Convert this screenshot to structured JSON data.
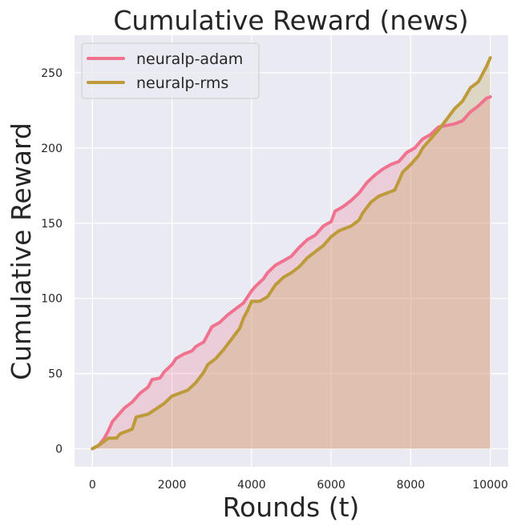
{
  "chart_data": {
    "type": "line",
    "title": "Cumulative Reward (news)",
    "xlabel": "Rounds (t)",
    "ylabel": "Cumulative Reward",
    "xlim": [
      -450,
      10450
    ],
    "ylim": [
      -12,
      275
    ],
    "xticks": [
      0,
      2000,
      4000,
      6000,
      8000,
      10000
    ],
    "yticks": [
      0,
      50,
      100,
      150,
      200,
      250
    ],
    "grid": true,
    "legend": "top-left",
    "fill_to_zero": true,
    "series": [
      {
        "name": "neuralp-adam",
        "color": "#f0728f",
        "points": [
          [
            0,
            0
          ],
          [
            150,
            2
          ],
          [
            300,
            7
          ],
          [
            400,
            12
          ],
          [
            500,
            18
          ],
          [
            700,
            24
          ],
          [
            800,
            27
          ],
          [
            1000,
            31
          ],
          [
            1200,
            37
          ],
          [
            1400,
            41
          ],
          [
            1500,
            46
          ],
          [
            1700,
            47
          ],
          [
            1800,
            51
          ],
          [
            2000,
            56
          ],
          [
            2100,
            60
          ],
          [
            2300,
            63
          ],
          [
            2500,
            65
          ],
          [
            2600,
            68
          ],
          [
            2800,
            71
          ],
          [
            2900,
            76
          ],
          [
            3000,
            81
          ],
          [
            3200,
            84
          ],
          [
            3400,
            89
          ],
          [
            3600,
            93
          ],
          [
            3800,
            97
          ],
          [
            3900,
            101
          ],
          [
            4000,
            105
          ],
          [
            4100,
            108
          ],
          [
            4300,
            113
          ],
          [
            4400,
            117
          ],
          [
            4600,
            122
          ],
          [
            4800,
            125
          ],
          [
            5000,
            128
          ],
          [
            5200,
            134
          ],
          [
            5400,
            139
          ],
          [
            5600,
            142
          ],
          [
            5800,
            148
          ],
          [
            6000,
            151
          ],
          [
            6100,
            158
          ],
          [
            6300,
            161
          ],
          [
            6500,
            165
          ],
          [
            6700,
            170
          ],
          [
            6900,
            177
          ],
          [
            7100,
            182
          ],
          [
            7300,
            186
          ],
          [
            7500,
            189
          ],
          [
            7700,
            191
          ],
          [
            7900,
            197
          ],
          [
            8100,
            200
          ],
          [
            8300,
            206
          ],
          [
            8500,
            209
          ],
          [
            8700,
            214
          ],
          [
            8900,
            215
          ],
          [
            9100,
            216
          ],
          [
            9300,
            218
          ],
          [
            9500,
            224
          ],
          [
            9700,
            228
          ],
          [
            9900,
            233
          ],
          [
            10000,
            234
          ]
        ]
      },
      {
        "name": "neuralp-rms",
        "color": "#bd9a3a",
        "points": [
          [
            0,
            0
          ],
          [
            200,
            3
          ],
          [
            400,
            7
          ],
          [
            600,
            7
          ],
          [
            700,
            10
          ],
          [
            1000,
            13
          ],
          [
            1100,
            21
          ],
          [
            1400,
            23
          ],
          [
            1800,
            30
          ],
          [
            2000,
            35
          ],
          [
            2200,
            37
          ],
          [
            2400,
            39
          ],
          [
            2600,
            44
          ],
          [
            2800,
            51
          ],
          [
            2900,
            56
          ],
          [
            3100,
            60
          ],
          [
            3300,
            66
          ],
          [
            3500,
            73
          ],
          [
            3700,
            80
          ],
          [
            3800,
            87
          ],
          [
            3900,
            92
          ],
          [
            4000,
            98
          ],
          [
            4200,
            98
          ],
          [
            4400,
            101
          ],
          [
            4600,
            109
          ],
          [
            4800,
            114
          ],
          [
            5000,
            117
          ],
          [
            5200,
            121
          ],
          [
            5400,
            127
          ],
          [
            5600,
            131
          ],
          [
            5800,
            135
          ],
          [
            6000,
            141
          ],
          [
            6200,
            145
          ],
          [
            6500,
            148
          ],
          [
            6700,
            152
          ],
          [
            6800,
            157
          ],
          [
            7000,
            164
          ],
          [
            7200,
            168
          ],
          [
            7400,
            170
          ],
          [
            7600,
            172
          ],
          [
            7800,
            184
          ],
          [
            8000,
            189
          ],
          [
            8200,
            195
          ],
          [
            8300,
            200
          ],
          [
            8500,
            206
          ],
          [
            8700,
            212
          ],
          [
            8900,
            219
          ],
          [
            9100,
            226
          ],
          [
            9300,
            231
          ],
          [
            9500,
            240
          ],
          [
            9700,
            244
          ],
          [
            9900,
            254
          ],
          [
            10000,
            260
          ]
        ]
      }
    ]
  }
}
